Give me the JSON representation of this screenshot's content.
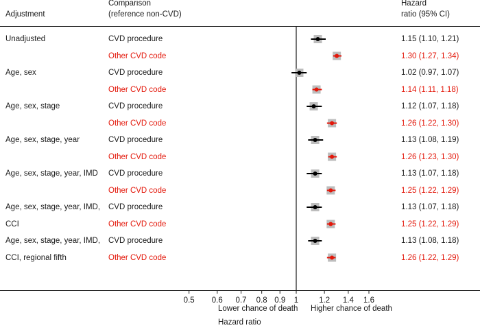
{
  "header": {
    "adjustment": "Adjustment",
    "comparison_line1": "Comparison",
    "comparison_line2": "(reference non-CVD)",
    "hr_line1": "Hazard",
    "hr_line2": "ratio (95% CI)"
  },
  "colors": {
    "procedure": "#000000",
    "other_code": "#e3170a",
    "box": "#bdbdbd"
  },
  "chart_data": {
    "type": "forest",
    "xlabel": "Hazard ratio",
    "x_scale": "log",
    "xlim": [
      0.5,
      1.6
    ],
    "reference_line": 1,
    "xticks": [
      0.5,
      0.6,
      0.7,
      0.8,
      0.9,
      1,
      1.2,
      1.4,
      1.6
    ],
    "xtick_labels": [
      "0.5",
      "0.6",
      "0.7",
      "0.8",
      "0.9",
      "1",
      "1.2",
      "1.4",
      "1.6"
    ],
    "direction_labels": [
      "Lower chance of death",
      "Higher chance of death"
    ],
    "rows": [
      {
        "adjustment": "Unadjusted",
        "comparison": "CVD procedure",
        "hr": 1.15,
        "lo": 1.1,
        "hi": 1.21,
        "ci_text": "1.15 (1.10, 1.21)"
      },
      {
        "adjustment": "",
        "comparison": "Other CVD code",
        "hr": 1.3,
        "lo": 1.27,
        "hi": 1.34,
        "ci_text": "1.30 (1.27, 1.34)"
      },
      {
        "adjustment": "Age, sex",
        "comparison": "CVD procedure",
        "hr": 1.02,
        "lo": 0.97,
        "hi": 1.07,
        "ci_text": "1.02 (0.97, 1.07)"
      },
      {
        "adjustment": "",
        "comparison": "Other CVD code",
        "hr": 1.14,
        "lo": 1.11,
        "hi": 1.18,
        "ci_text": "1.14 (1.11, 1.18)"
      },
      {
        "adjustment": "Age, sex, stage",
        "comparison": "CVD procedure",
        "hr": 1.12,
        "lo": 1.07,
        "hi": 1.18,
        "ci_text": "1.12 (1.07, 1.18)"
      },
      {
        "adjustment": "",
        "comparison": "Other CVD code",
        "hr": 1.26,
        "lo": 1.22,
        "hi": 1.3,
        "ci_text": "1.26 (1.22, 1.30)"
      },
      {
        "adjustment": "Age, sex, stage, year",
        "comparison": "CVD procedure",
        "hr": 1.13,
        "lo": 1.08,
        "hi": 1.19,
        "ci_text": "1.13 (1.08, 1.19)"
      },
      {
        "adjustment": "",
        "comparison": "Other CVD code",
        "hr": 1.26,
        "lo": 1.23,
        "hi": 1.3,
        "ci_text": "1.26 (1.23, 1.30)"
      },
      {
        "adjustment": "Age, sex, stage, year, IMD",
        "comparison": "CVD procedure",
        "hr": 1.13,
        "lo": 1.07,
        "hi": 1.18,
        "ci_text": "1.13 (1.07, 1.18)"
      },
      {
        "adjustment": "",
        "comparison": "Other CVD code",
        "hr": 1.25,
        "lo": 1.22,
        "hi": 1.29,
        "ci_text": "1.25 (1.22, 1.29)"
      },
      {
        "adjustment": "Age, sex, stage, year, IMD,",
        "comparison": "CVD procedure",
        "hr": 1.13,
        "lo": 1.07,
        "hi": 1.18,
        "ci_text": "1.13 (1.07, 1.18)"
      },
      {
        "adjustment": "CCI",
        "comparison": "Other CVD code",
        "hr": 1.25,
        "lo": 1.22,
        "hi": 1.29,
        "ci_text": "1.25 (1.22, 1.29)"
      },
      {
        "adjustment": "Age, sex, stage, year, IMD,",
        "comparison": "CVD procedure",
        "hr": 1.13,
        "lo": 1.08,
        "hi": 1.18,
        "ci_text": "1.13 (1.08, 1.18)"
      },
      {
        "adjustment": "CCI, regional fifth",
        "comparison": "Other CVD code",
        "hr": 1.26,
        "lo": 1.22,
        "hi": 1.29,
        "ci_text": "1.26 (1.22, 1.29)"
      }
    ]
  }
}
